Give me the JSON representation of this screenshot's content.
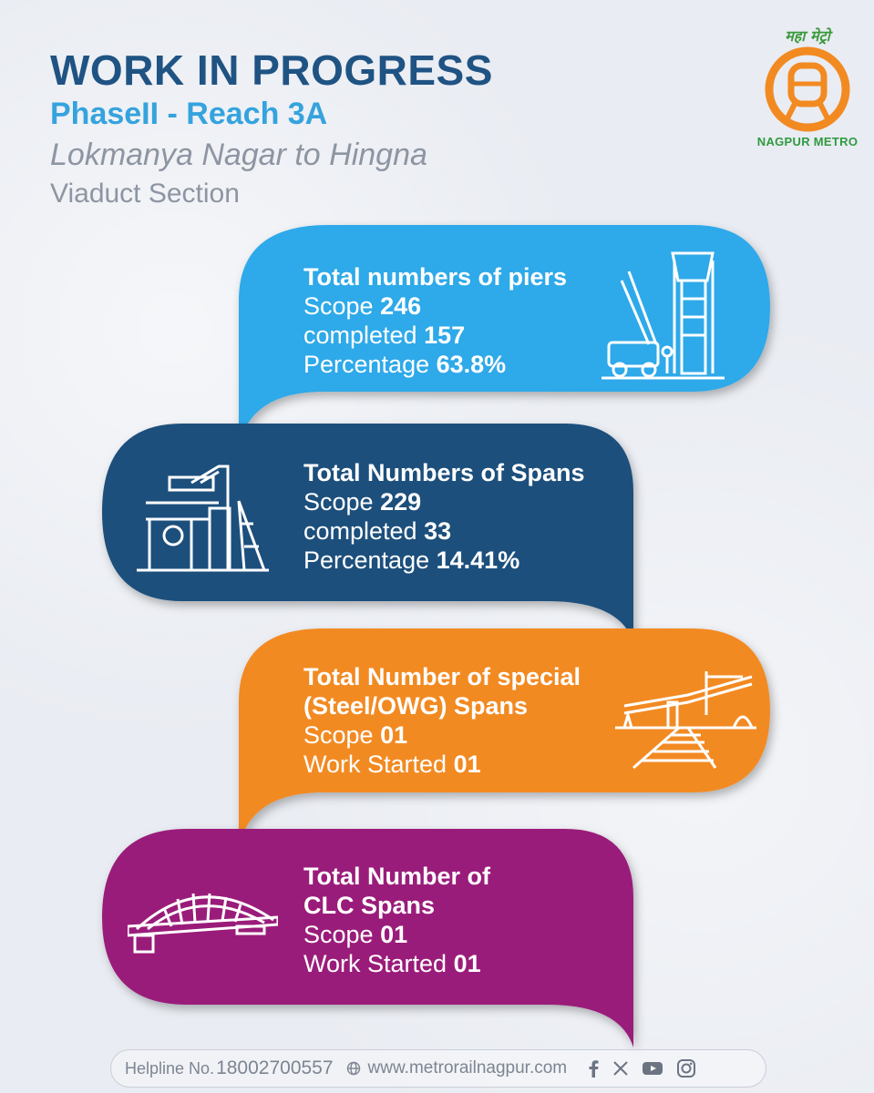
{
  "header": {
    "title": "WORK IN PROGRESS",
    "subtitle": "PhaseII - Reach 3A",
    "route": "Lokmanya Nagar to Hingna",
    "section": "Viaduct Section"
  },
  "logo": {
    "hindi": "महा मेट्रो",
    "name": "NAGPUR METRO"
  },
  "cards": [
    {
      "heading": "Total numbers of piers",
      "rows": [
        {
          "label": "Scope",
          "value": "246"
        },
        {
          "label": "completed",
          "value": "157"
        },
        {
          "label": "Percentage",
          "value": "63.8%"
        }
      ],
      "color": "#2fa9e9",
      "icon": "pier-construction-icon"
    },
    {
      "heading": "Total Numbers of Spans",
      "rows": [
        {
          "label": "Scope",
          "value": "229"
        },
        {
          "label": "completed",
          "value": "33"
        },
        {
          "label": "Percentage",
          "value": "14.41%"
        }
      ],
      "color": "#1c4f7c",
      "icon": "span-launcher-icon"
    },
    {
      "heading_line1": "Total Number of special",
      "heading_line2": "(Steel/OWG) Spans",
      "rows": [
        {
          "label": "Scope",
          "value": "01"
        },
        {
          "label": "Work Started",
          "value": "01"
        }
      ],
      "color": "#f28a22",
      "icon": "railway-overbridge-icon"
    },
    {
      "heading_line1": "Total Number of",
      "heading_line2": "CLC Spans",
      "rows": [
        {
          "label": "Scope",
          "value": "01"
        },
        {
          "label": "Work Started",
          "value": "01"
        }
      ],
      "color": "#9a1f7a",
      "icon": "arch-bridge-icon"
    }
  ],
  "footer": {
    "helpline_label": "Helpline No.",
    "helpline_number": "18002700557",
    "website": "www.metrorailnagpur.com",
    "social_icons": [
      "facebook-icon",
      "x-icon",
      "youtube-icon",
      "instagram-icon"
    ]
  }
}
